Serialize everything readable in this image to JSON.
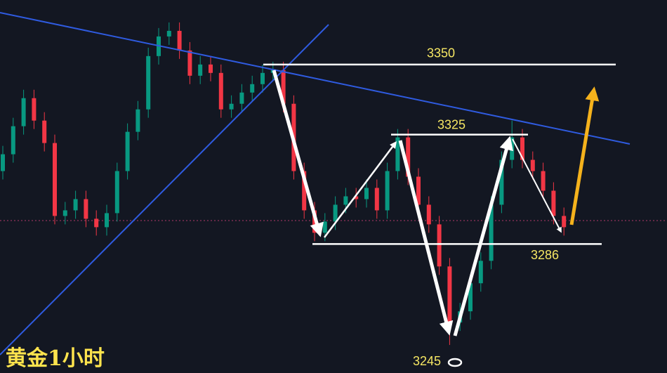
{
  "chart_data": {
    "type": "candlestick",
    "title": "黄金1小时",
    "ylim": [
      3240,
      3373
    ],
    "levels": [
      3350,
      3325,
      3286,
      3245
    ],
    "up_color": "#089981",
    "down_color": "#f23645",
    "open": [
      3312,
      3318,
      3328,
      3338,
      3330,
      3322,
      3296,
      3298,
      3302,
      3295,
      3292,
      3297,
      3312,
      3326,
      3334,
      3353,
      3360,
      3362,
      3355,
      3346,
      3350,
      3347,
      3334,
      3336,
      3340,
      3343,
      3347,
      3348,
      3336,
      3312,
      3298,
      3290,
      3294,
      3300,
      3303,
      3302,
      3306,
      3298,
      3312,
      3324,
      3310,
      3300,
      3293,
      3278,
      3258,
      3262,
      3272,
      3280,
      3300,
      3316,
      3324,
      3316,
      3312,
      3305,
      3296
    ],
    "high": [
      3321,
      3331,
      3341,
      3341,
      3333,
      3325,
      3301,
      3305,
      3305,
      3298,
      3300,
      3315,
      3329,
      3337,
      3356,
      3363,
      3365,
      3365,
      3358,
      3353,
      3353,
      3350,
      3339,
      3343,
      3346,
      3350,
      3351,
      3351,
      3339,
      3315,
      3301,
      3297,
      3303,
      3306,
      3306,
      3309,
      3309,
      3315,
      3327,
      3327,
      3313,
      3303,
      3296,
      3281,
      3265,
      3275,
      3283,
      3303,
      3319,
      3330,
      3327,
      3319,
      3315,
      3308,
      3299
    ],
    "low": [
      3309,
      3315,
      3325,
      3327,
      3319,
      3293,
      3293,
      3295,
      3292,
      3289,
      3289,
      3294,
      3309,
      3323,
      3331,
      3350,
      3357,
      3352,
      3343,
      3343,
      3344,
      3331,
      3331,
      3333,
      3337,
      3340,
      3344,
      3333,
      3309,
      3295,
      3287,
      3287,
      3291,
      3297,
      3299,
      3299,
      3295,
      3295,
      3309,
      3307,
      3297,
      3290,
      3275,
      3250,
      3255,
      3259,
      3269,
      3277,
      3297,
      3313,
      3313,
      3309,
      3302,
      3293,
      3289
    ],
    "close": [
      3318,
      3328,
      3338,
      3330,
      3322,
      3296,
      3298,
      3302,
      3295,
      3292,
      3297,
      3312,
      3326,
      3334,
      3353,
      3360,
      3362,
      3355,
      3346,
      3350,
      3347,
      3334,
      3336,
      3340,
      3343,
      3347,
      3348,
      3336,
      3312,
      3298,
      3290,
      3294,
      3300,
      3303,
      3302,
      3306,
      3298,
      3312,
      3324,
      3310,
      3300,
      3293,
      3278,
      3258,
      3262,
      3272,
      3280,
      3300,
      3316,
      3324,
      3316,
      3312,
      3305,
      3296,
      3292
    ]
  }
}
